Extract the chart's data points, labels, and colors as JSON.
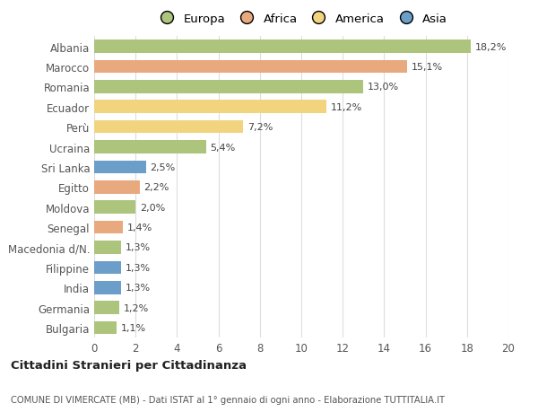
{
  "categories": [
    "Albania",
    "Marocco",
    "Romania",
    "Ecuador",
    "Perù",
    "Ucraina",
    "Sri Lanka",
    "Egitto",
    "Moldova",
    "Senegal",
    "Macedonia d/N.",
    "Filippine",
    "India",
    "Germania",
    "Bulgaria"
  ],
  "values": [
    18.2,
    15.1,
    13.0,
    11.2,
    7.2,
    5.4,
    2.5,
    2.2,
    2.0,
    1.4,
    1.3,
    1.3,
    1.3,
    1.2,
    1.1
  ],
  "labels": [
    "18,2%",
    "15,1%",
    "13,0%",
    "11,2%",
    "7,2%",
    "5,4%",
    "2,5%",
    "2,2%",
    "2,0%",
    "1,4%",
    "1,3%",
    "1,3%",
    "1,3%",
    "1,2%",
    "1,1%"
  ],
  "continents": [
    "Europa",
    "Africa",
    "Europa",
    "America",
    "America",
    "Europa",
    "Asia",
    "Africa",
    "Europa",
    "Africa",
    "Europa",
    "Asia",
    "Asia",
    "Europa",
    "Europa"
  ],
  "colors": {
    "Europa": "#adc47c",
    "Africa": "#e8a97e",
    "America": "#f2d47e",
    "Asia": "#6b9ec8"
  },
  "xlim": [
    0,
    20
  ],
  "xticks": [
    0,
    2,
    4,
    6,
    8,
    10,
    12,
    14,
    16,
    18,
    20
  ],
  "title": "Cittadini Stranieri per Cittadinanza",
  "subtitle": "COMUNE DI VIMERCATE (MB) - Dati ISTAT al 1° gennaio di ogni anno - Elaborazione TUTTITALIA.IT",
  "bg_color": "#ffffff",
  "grid_color": "#dddddd",
  "bar_height": 0.65,
  "legend_order": [
    "Europa",
    "Africa",
    "America",
    "Asia"
  ]
}
